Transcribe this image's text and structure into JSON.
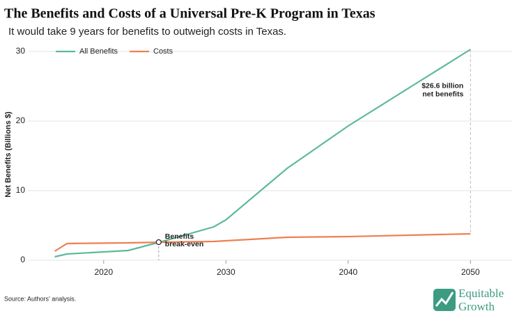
{
  "chart_data": {
    "type": "line",
    "title": "The Benefits and Costs of a Universal Pre-K Program in Texas",
    "subtitle": "It would take 9 years for benefits to outweigh costs in Texas.",
    "y_label": "Net Benefits (Billions $)",
    "x": [
      2016,
      2017,
      2022,
      2025,
      2029,
      2030,
      2035,
      2040,
      2045,
      2050
    ],
    "series": [
      {
        "name": "All Benefits",
        "color": "#5cb99a",
        "values": [
          0.5,
          0.9,
          1.4,
          2.8,
          4.8,
          5.8,
          13.2,
          19.3,
          24.8,
          30.3
        ]
      },
      {
        "name": "Costs",
        "color": "#ef7f53",
        "values": [
          1.3,
          2.4,
          2.5,
          2.6,
          2.7,
          2.8,
          3.3,
          3.4,
          3.6,
          3.8
        ]
      }
    ],
    "xlim": [
      2013.8,
      2053.4
    ],
    "ylim": [
      0,
      31
    ],
    "xticks": [
      2020,
      2030,
      2040,
      2050
    ],
    "yticks": [
      0,
      10,
      20,
      30
    ],
    "grid": true,
    "legend": "top-left",
    "annotations": [
      {
        "lines": [
          "Benefits",
          "break-even"
        ],
        "x": 2024.5,
        "y": 2.6
      },
      {
        "lines": [
          "$26.6 billion",
          "net benefits"
        ],
        "x": 2050
      }
    ],
    "source": "Source: Authors’ analysis.",
    "logo": [
      "Equitable",
      "Growth"
    ]
  }
}
